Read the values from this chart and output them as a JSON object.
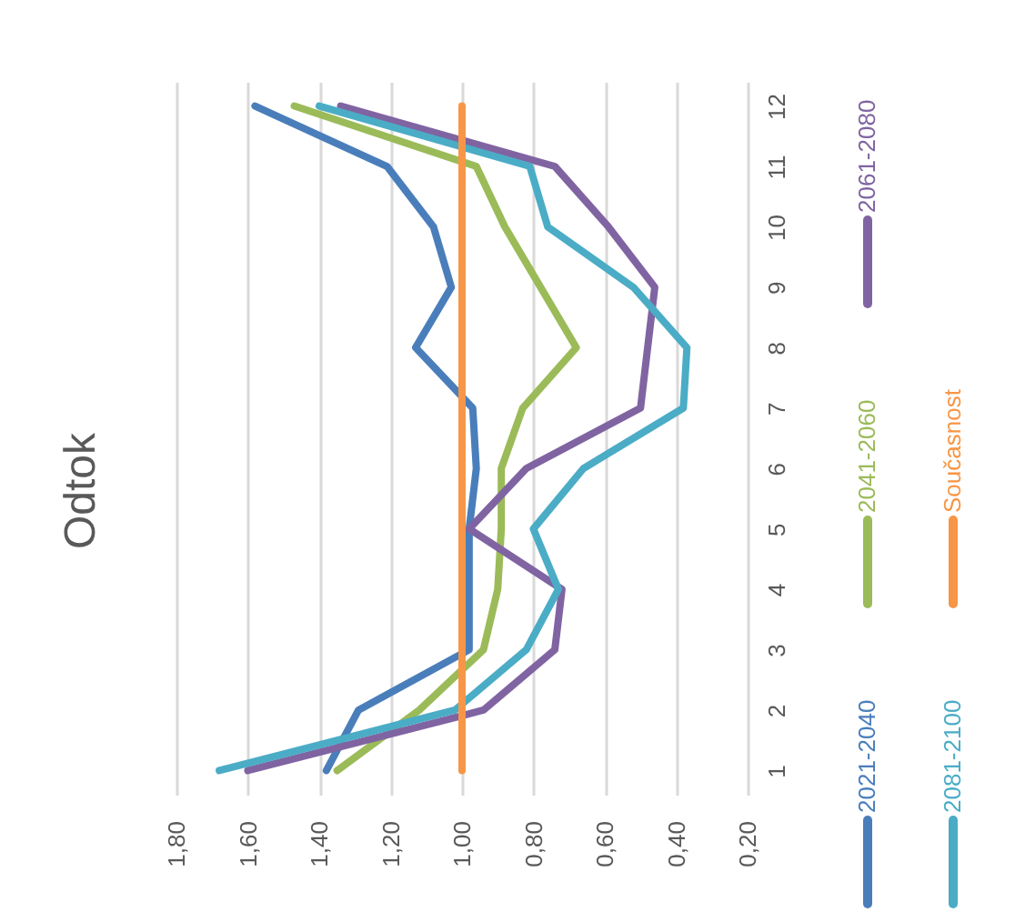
{
  "chart_data": {
    "type": "line",
    "title": "Odtok",
    "orientation": "horizontal",
    "categories": [
      "12",
      "11",
      "10",
      "9",
      "8",
      "7",
      "6",
      "5",
      "4",
      "3",
      "2",
      "1"
    ],
    "xlim": [
      1.8,
      0.2
    ],
    "xticks": [
      {
        "value": 1.8,
        "label": "1,80"
      },
      {
        "value": 1.6,
        "label": "1,60"
      },
      {
        "value": 1.4,
        "label": "1,40"
      },
      {
        "value": 1.2,
        "label": "1,20"
      },
      {
        "value": 1.0,
        "label": "1,00"
      },
      {
        "value": 0.8,
        "label": "0,80"
      },
      {
        "value": 0.6,
        "label": "0,60"
      },
      {
        "value": 0.4,
        "label": "0,40"
      },
      {
        "value": 0.2,
        "label": "0,20"
      }
    ],
    "grid": "x",
    "legend": "right",
    "line_style": "solid",
    "series": [
      {
        "name": "2021-2040",
        "color": "#4a7ebb",
        "values": [
          1.58,
          1.21,
          1.08,
          1.03,
          1.13,
          0.97,
          0.96,
          0.98,
          0.98,
          0.98,
          1.29,
          1.38
        ]
      },
      {
        "name": "2041-2060",
        "color": "#9bbb59",
        "values": [
          1.47,
          0.96,
          0.88,
          0.78,
          0.68,
          0.83,
          0.89,
          0.89,
          0.9,
          0.94,
          1.12,
          1.35
        ]
      },
      {
        "name": "2061-2080",
        "color": "#8064a2",
        "values": [
          1.34,
          0.74,
          0.59,
          0.46,
          0.48,
          0.5,
          0.82,
          0.98,
          0.72,
          0.74,
          0.94,
          1.6
        ]
      },
      {
        "name": "2081-2100",
        "color": "#4bacc6",
        "values": [
          1.4,
          0.81,
          0.76,
          0.52,
          0.37,
          0.38,
          0.66,
          0.8,
          0.73,
          0.82,
          1.02,
          1.68
        ]
      },
      {
        "name": "Současnost",
        "color": "#f79646",
        "values": [
          1.0,
          1.0,
          1.0,
          1.0,
          1.0,
          1.0,
          1.0,
          1.0,
          1.0,
          1.0,
          1.0,
          1.0
        ]
      }
    ]
  }
}
